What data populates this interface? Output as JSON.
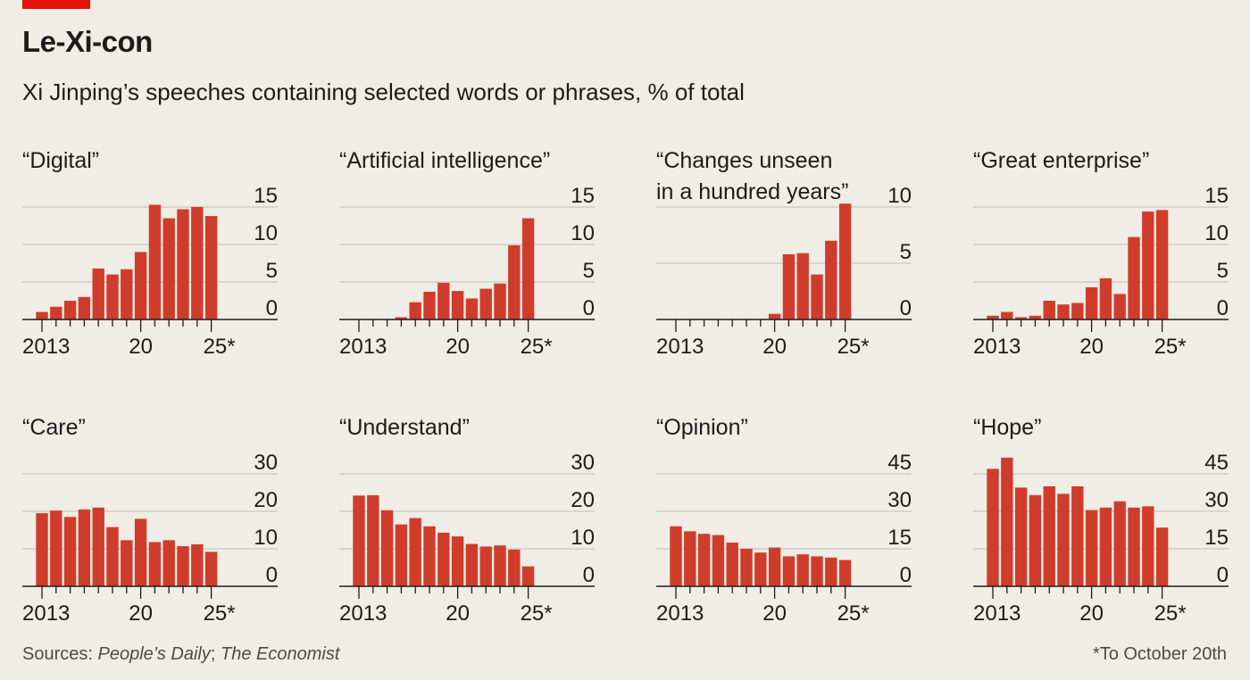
{
  "header": {
    "title": "Le-Xi-con",
    "subtitle": "Xi Jinping’s speeches containing selected words or phrases, % of total"
  },
  "footer": {
    "sources_prefix": "Sources: ",
    "source_1": "People’s Daily",
    "separator": "; ",
    "source_2": "The Economist",
    "note": "*To October 20th"
  },
  "colors": {
    "bar": "#d03c2b",
    "grid": "#c9c7c0",
    "axis": "#1c1c1c",
    "background": "#efede5",
    "brand_red": "#e3120b"
  },
  "chart_data": [
    {
      "type": "bar",
      "title": "“Digital”",
      "categories": [
        2013,
        2014,
        2015,
        2016,
        2017,
        2018,
        2019,
        2020,
        2021,
        2022,
        2023,
        2024,
        2025
      ],
      "values": [
        1,
        1.7,
        2.5,
        3,
        6.8,
        6,
        6.7,
        9,
        15.3,
        13.5,
        14.7,
        15,
        13.8
      ],
      "ylim": [
        0,
        15
      ],
      "yticks": [
        "15",
        "10",
        "5",
        "0"
      ],
      "ytick_values": [
        15,
        10,
        5,
        0
      ],
      "xtick_labels": [
        "2013",
        "20",
        "25*"
      ]
    },
    {
      "type": "bar",
      "title": "“Artificial intelligence”",
      "categories": [
        2013,
        2014,
        2015,
        2016,
        2017,
        2018,
        2019,
        2020,
        2021,
        2022,
        2023,
        2024,
        2025
      ],
      "values": [
        0,
        0,
        0,
        0.3,
        2.3,
        3.7,
        4.9,
        3.8,
        2.8,
        4.1,
        4.8,
        9.9,
        13.5
      ],
      "ylim": [
        0,
        15
      ],
      "yticks": [
        "15",
        "10",
        "5",
        "0"
      ],
      "ytick_values": [
        15,
        10,
        5,
        0
      ],
      "xtick_labels": [
        "2013",
        "20",
        "25*"
      ]
    },
    {
      "type": "bar",
      "title": "“Changes unseen\nin a hundred years”",
      "categories": [
        2013,
        2014,
        2015,
        2016,
        2017,
        2018,
        2019,
        2020,
        2021,
        2022,
        2023,
        2024,
        2025
      ],
      "values": [
        0,
        0,
        0,
        0,
        0,
        0,
        0,
        0.5,
        5.8,
        5.9,
        4,
        7,
        10.3
      ],
      "ylim": [
        0,
        10
      ],
      "yticks": [
        "10",
        "5",
        "0"
      ],
      "ytick_values": [
        10,
        5,
        0
      ],
      "xtick_labels": [
        "2013",
        "20",
        "25*"
      ]
    },
    {
      "type": "bar",
      "title": "“Great enterprise”",
      "categories": [
        2013,
        2014,
        2015,
        2016,
        2017,
        2018,
        2019,
        2020,
        2021,
        2022,
        2023,
        2024,
        2025
      ],
      "values": [
        0.5,
        1,
        0.3,
        0.5,
        2.5,
        2,
        2.2,
        4.3,
        5.5,
        3.4,
        11,
        14.4,
        14.6
      ],
      "ylim": [
        0,
        15
      ],
      "yticks": [
        "15",
        "10",
        "5",
        "0"
      ],
      "ytick_values": [
        15,
        10,
        5,
        0
      ],
      "xtick_labels": [
        "2013",
        "20",
        "25*"
      ]
    },
    {
      "type": "bar",
      "title": "“Care”",
      "categories": [
        2013,
        2014,
        2015,
        2016,
        2017,
        2018,
        2019,
        2020,
        2021,
        2022,
        2023,
        2024,
        2025
      ],
      "values": [
        19.5,
        20.2,
        18.5,
        20.5,
        21,
        15.8,
        12.3,
        18,
        11.8,
        12.3,
        10.7,
        11.2,
        9.2
      ],
      "ylim": [
        0,
        30
      ],
      "yticks": [
        "30",
        "20",
        "10",
        "0"
      ],
      "ytick_values": [
        30,
        20,
        10,
        0
      ],
      "xtick_labels": [
        "2013",
        "20",
        "25*"
      ]
    },
    {
      "type": "bar",
      "title": "“Understand”",
      "categories": [
        2013,
        2014,
        2015,
        2016,
        2017,
        2018,
        2019,
        2020,
        2021,
        2022,
        2023,
        2024,
        2025
      ],
      "values": [
        24.2,
        24.3,
        20.3,
        16.5,
        18.2,
        16,
        14.3,
        13.3,
        11.3,
        10.6,
        10.9,
        9.8,
        5.3
      ],
      "ylim": [
        0,
        30
      ],
      "yticks": [
        "30",
        "20",
        "10",
        "0"
      ],
      "ytick_values": [
        30,
        20,
        10,
        0
      ],
      "xtick_labels": [
        "2013",
        "20",
        "25*"
      ]
    },
    {
      "type": "bar",
      "title": "“Opinion”",
      "categories": [
        2013,
        2014,
        2015,
        2016,
        2017,
        2018,
        2019,
        2020,
        2021,
        2022,
        2023,
        2024,
        2025
      ],
      "values": [
        24,
        22,
        21,
        20.5,
        17.5,
        15,
        13.5,
        15.5,
        12,
        12.8,
        12,
        11.5,
        10.5
      ],
      "ylim": [
        0,
        45
      ],
      "yticks": [
        "45",
        "30",
        "15",
        "0"
      ],
      "ytick_values": [
        45,
        30,
        15,
        0
      ],
      "xtick_labels": [
        "2013",
        "20",
        "25*"
      ]
    },
    {
      "type": "bar",
      "title": "“Hope”",
      "categories": [
        2013,
        2014,
        2015,
        2016,
        2017,
        2018,
        2019,
        2020,
        2021,
        2022,
        2023,
        2024,
        2025
      ],
      "values": [
        47,
        51.5,
        39.5,
        36.5,
        40,
        37,
        40,
        30.5,
        31.5,
        34,
        31.5,
        32,
        23.5
      ],
      "ylim": [
        0,
        45
      ],
      "yticks": [
        "45",
        "30",
        "15",
        "0"
      ],
      "ytick_values": [
        45,
        30,
        15,
        0
      ],
      "xtick_labels": [
        "2013",
        "20",
        "25*"
      ]
    }
  ]
}
